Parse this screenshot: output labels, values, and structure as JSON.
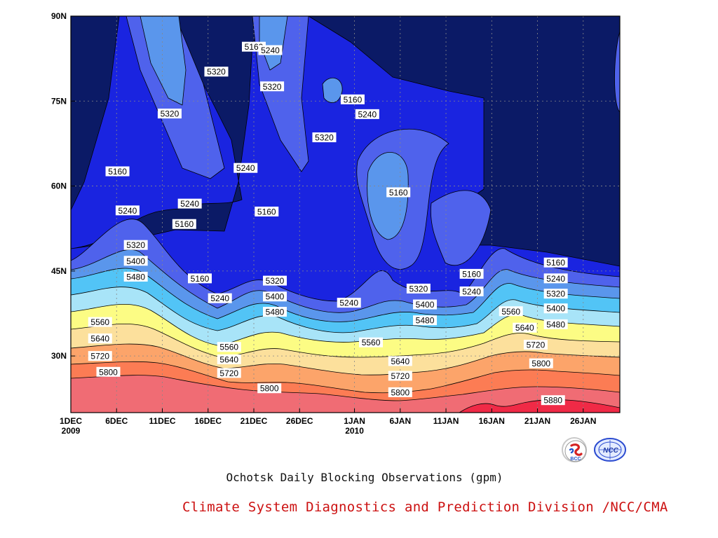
{
  "chart_data": {
    "type": "contour-filled",
    "title": "",
    "caption": "Ochotsk Daily Blocking Observations (gpm)",
    "credit": "Climate System Diagnostics and Prediction Division /NCC/CMA",
    "logos": [
      "BCC",
      "NCC"
    ],
    "x_ticks": [
      {
        "label": "1DEC",
        "sub": "2009",
        "day": 0
      },
      {
        "label": "6DEC",
        "sub": "",
        "day": 5
      },
      {
        "label": "11DEC",
        "sub": "",
        "day": 10
      },
      {
        "label": "16DEC",
        "sub": "",
        "day": 15
      },
      {
        "label": "21DEC",
        "sub": "",
        "day": 20
      },
      {
        "label": "26DEC",
        "sub": "",
        "day": 25
      },
      {
        "label": "1JAN",
        "sub": "2010",
        "day": 31
      },
      {
        "label": "6JAN",
        "sub": "",
        "day": 36
      },
      {
        "label": "11JAN",
        "sub": "",
        "day": 41
      },
      {
        "label": "16JAN",
        "sub": "",
        "day": 46
      },
      {
        "label": "21JAN",
        "sub": "",
        "day": 51
      },
      {
        "label": "26JAN",
        "sub": "",
        "day": 56
      }
    ],
    "y_ticks": [
      {
        "label": "30N",
        "lat": 30
      },
      {
        "label": "45N",
        "lat": 45
      },
      {
        "label": "60N",
        "lat": 60
      },
      {
        "label": "75N",
        "lat": 75
      },
      {
        "label": "90N",
        "lat": 90
      }
    ],
    "xlim": [
      0,
      60
    ],
    "ylim": [
      20,
      90
    ],
    "grid": true,
    "levels": [
      5160,
      5240,
      5320,
      5400,
      5480,
      5560,
      5640,
      5720,
      5800,
      5880
    ],
    "colors": {
      "below_5160": "#0b1a66",
      "5160_5240": "#1a24e0",
      "5240_5320": "#4f62ec",
      "5320_5400": "#5a96ec",
      "5400_5480": "#52c4f6",
      "5480_5560": "#a8e4f8",
      "5560_5640": "#fcfc84",
      "5640_5720": "#fce09c",
      "5720_5800": "#fca46a",
      "5800_5880": "#fc7c54",
      "above_5880": "#f06c74",
      "top_5880": "#f02a46"
    },
    "contour_labels": [
      {
        "text": "5160",
        "day": 20,
        "lat": 84.6,
        "note": "upper"
      },
      {
        "text": "5240",
        "day": 21.8,
        "lat": 84
      },
      {
        "text": "5320",
        "day": 15.9,
        "lat": 80.2
      },
      {
        "text": "5320",
        "day": 22,
        "lat": 77.6
      },
      {
        "text": "5320",
        "day": 10.8,
        "lat": 72.8
      },
      {
        "text": "5160",
        "day": 30.8,
        "lat": 75.3
      },
      {
        "text": "5240",
        "day": 32.4,
        "lat": 72.7
      },
      {
        "text": "5320",
        "day": 27.7,
        "lat": 68.6
      },
      {
        "text": "5160",
        "day": 5.1,
        "lat": 62.6
      },
      {
        "text": "5240",
        "day": 19.1,
        "lat": 63.2
      },
      {
        "text": "5240",
        "day": 13,
        "lat": 56.9
      },
      {
        "text": "5160",
        "day": 12.4,
        "lat": 53.3
      },
      {
        "text": "5240",
        "day": 6.2,
        "lat": 55.7
      },
      {
        "text": "5160",
        "day": 21.4,
        "lat": 55.5
      },
      {
        "text": "5160",
        "day": 35.8,
        "lat": 58.9
      },
      {
        "text": "5320",
        "day": 7.1,
        "lat": 49.6
      },
      {
        "text": "5400",
        "day": 7.1,
        "lat": 46.8
      },
      {
        "text": "5480",
        "day": 7.1,
        "lat": 44.0
      },
      {
        "text": "5160",
        "day": 14.1,
        "lat": 43.7
      },
      {
        "text": "5240",
        "day": 16.3,
        "lat": 40.2
      },
      {
        "text": "5320",
        "day": 22.3,
        "lat": 43.3
      },
      {
        "text": "5400",
        "day": 22.3,
        "lat": 40.5
      },
      {
        "text": "5480",
        "day": 22.3,
        "lat": 37.8
      },
      {
        "text": "5240",
        "day": 30.4,
        "lat": 39.4
      },
      {
        "text": "5320",
        "day": 38,
        "lat": 41.9
      },
      {
        "text": "5400",
        "day": 38.7,
        "lat": 39.1
      },
      {
        "text": "5480",
        "day": 38.7,
        "lat": 36.3
      },
      {
        "text": "5160",
        "day": 43.8,
        "lat": 44.5
      },
      {
        "text": "5240",
        "day": 43.8,
        "lat": 41.4
      },
      {
        "text": "5560",
        "day": 3.2,
        "lat": 36.0
      },
      {
        "text": "5640",
        "day": 3.2,
        "lat": 33.1
      },
      {
        "text": "5720",
        "day": 3.2,
        "lat": 30.0
      },
      {
        "text": "5800",
        "day": 4.1,
        "lat": 27.2
      },
      {
        "text": "5560",
        "day": 17.3,
        "lat": 31.6
      },
      {
        "text": "5640",
        "day": 17.3,
        "lat": 29.4
      },
      {
        "text": "5720",
        "day": 17.3,
        "lat": 27.0
      },
      {
        "text": "5800",
        "day": 21.7,
        "lat": 24.3
      },
      {
        "text": "5560",
        "day": 32.8,
        "lat": 32.4
      },
      {
        "text": "5640",
        "day": 36,
        "lat": 29.1
      },
      {
        "text": "5720",
        "day": 36,
        "lat": 26.5
      },
      {
        "text": "5800",
        "day": 36,
        "lat": 23.6
      },
      {
        "text": "5560",
        "day": 48.1,
        "lat": 37.9
      },
      {
        "text": "5640",
        "day": 49.6,
        "lat": 35.0
      },
      {
        "text": "5720",
        "day": 50.8,
        "lat": 32.0
      },
      {
        "text": "5800",
        "day": 51.4,
        "lat": 28.7
      },
      {
        "text": "5880",
        "day": 52.7,
        "lat": 22.2
      },
      {
        "text": "5160",
        "day": 53,
        "lat": 46.5
      },
      {
        "text": "5240",
        "day": 53,
        "lat": 43.7
      },
      {
        "text": "5320",
        "day": 53,
        "lat": 41.0
      },
      {
        "text": "5400",
        "day": 53,
        "lat": 38.4
      },
      {
        "text": "5480",
        "day": 53,
        "lat": 35.6
      }
    ]
  }
}
